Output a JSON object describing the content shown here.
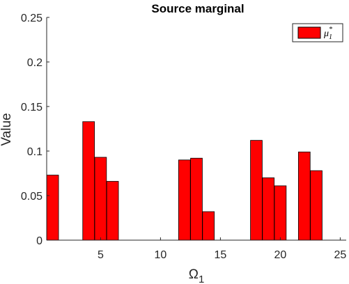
{
  "chart_data": {
    "type": "bar",
    "title": "Source marginal",
    "xlabel": "Ω",
    "xlabel_subscript": "1",
    "ylabel": "Value",
    "xlim": [
      0.5,
      25.5
    ],
    "ylim": [
      0,
      0.25
    ],
    "xticks": [
      5,
      10,
      15,
      20,
      25
    ],
    "yticks": [
      0,
      0.05,
      0.1,
      0.15,
      0.2,
      0.25
    ],
    "ytick_labels": [
      "0",
      "0.05",
      "0.1",
      "0.15",
      "0.2",
      "0.25"
    ],
    "grid": false,
    "legend_position": "top-right",
    "series": [
      {
        "name": "μ",
        "name_subscript": "1",
        "name_superscript": "*",
        "color": "#ff0000",
        "edge_color": "#000000",
        "x": [
          1,
          2,
          3,
          4,
          5,
          6,
          7,
          8,
          9,
          10,
          11,
          12,
          13,
          14,
          15,
          16,
          17,
          18,
          19,
          20,
          21,
          22,
          23,
          24,
          25
        ],
        "values": [
          0.073,
          0,
          0,
          0.133,
          0.093,
          0.066,
          0,
          0,
          0,
          0,
          0,
          0.09,
          0.092,
          0.032,
          0,
          0,
          0,
          0.112,
          0.07,
          0.061,
          0,
          0.099,
          0.078,
          0,
          0
        ]
      }
    ]
  }
}
